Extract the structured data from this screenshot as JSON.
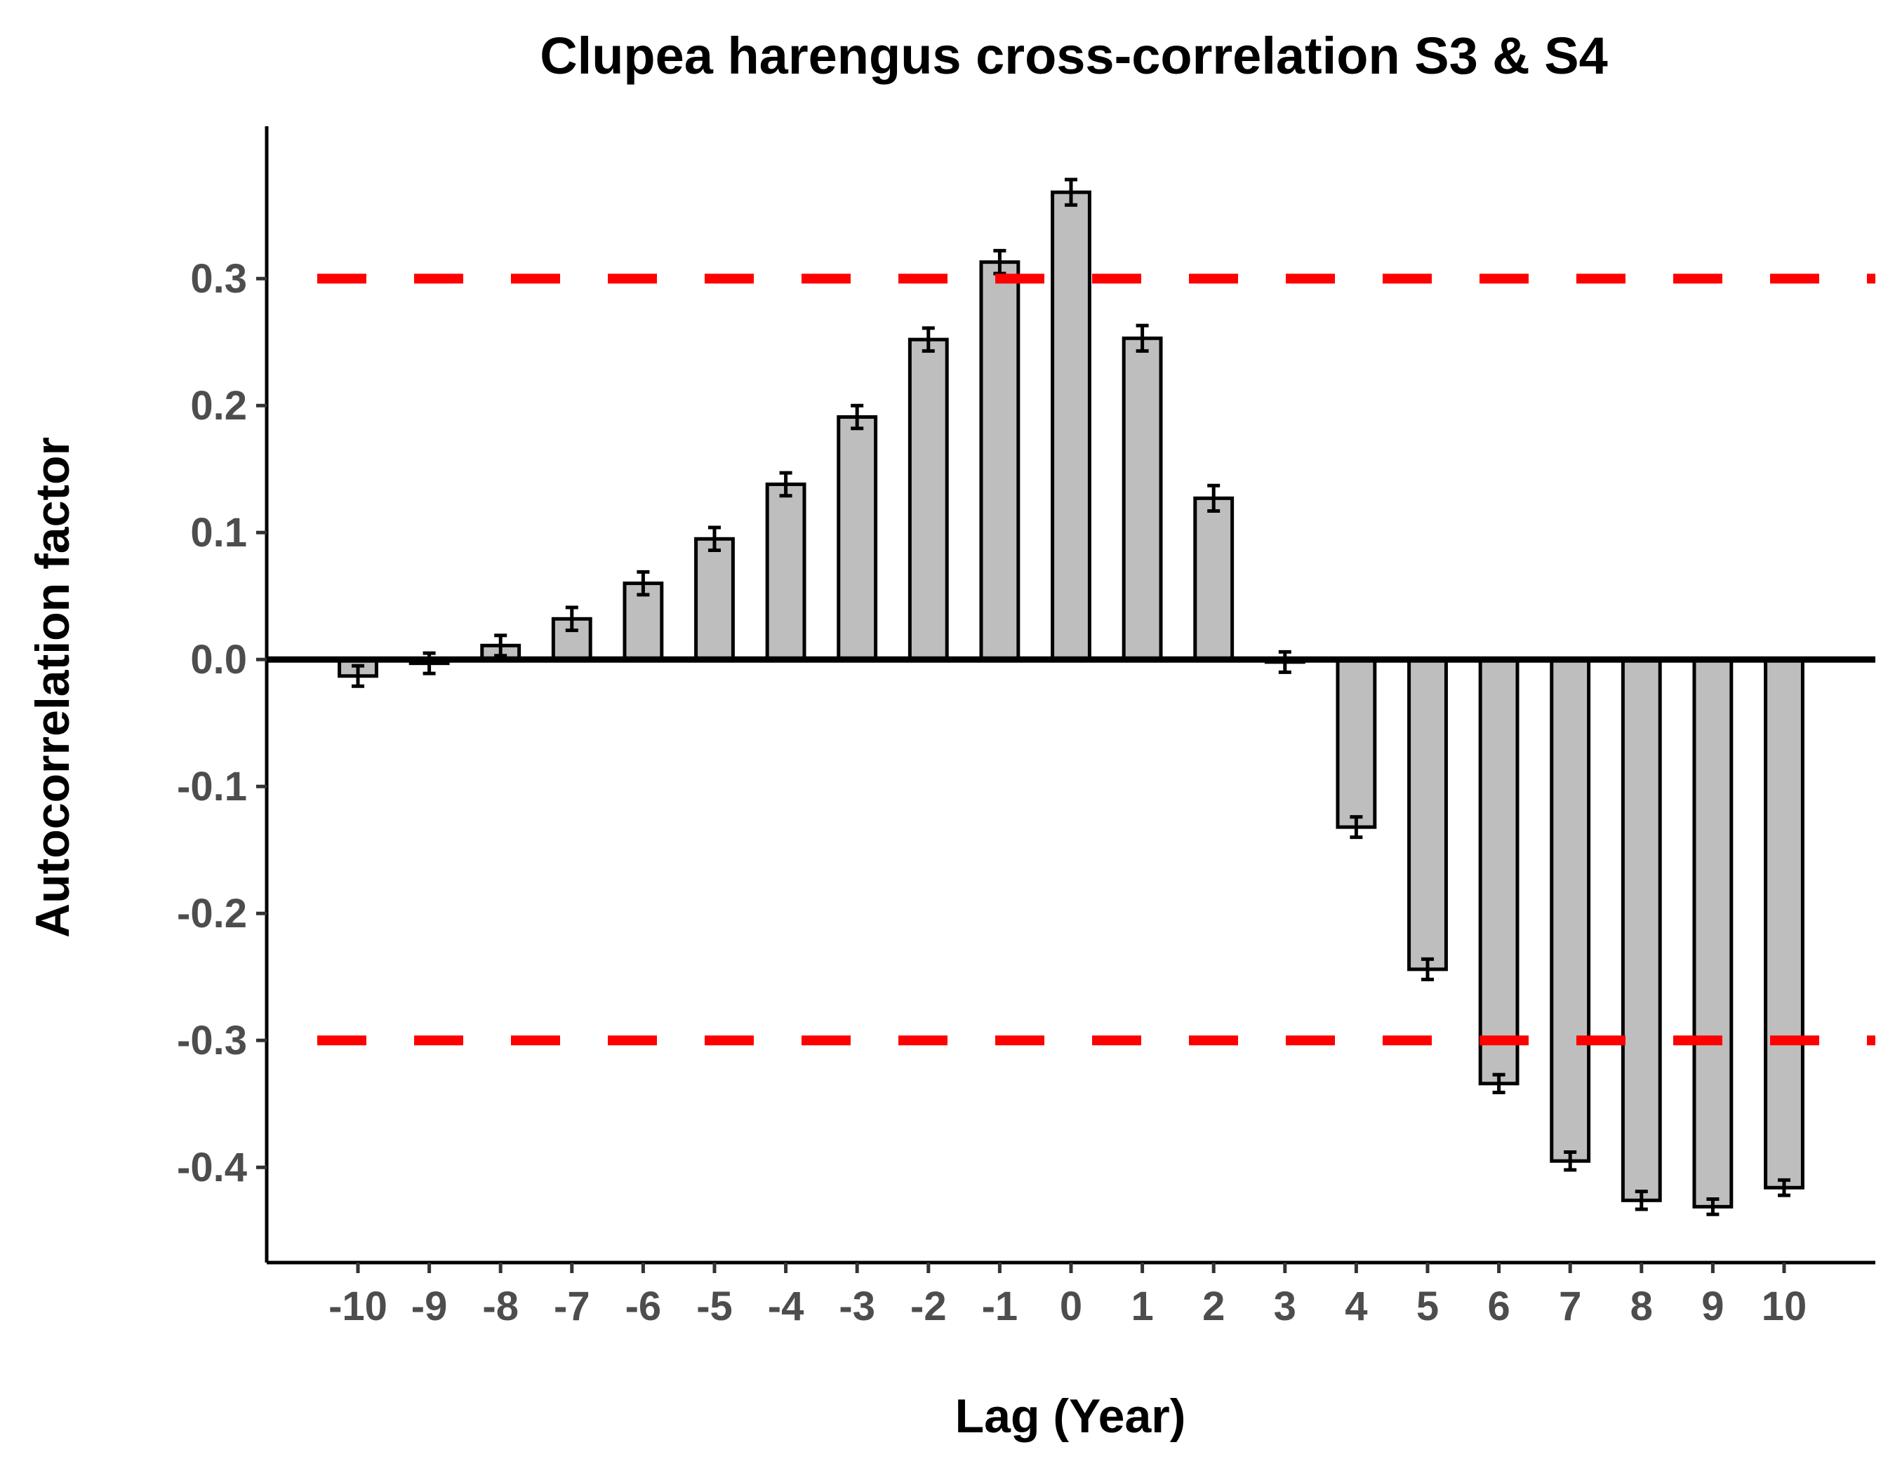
{
  "chart_data": {
    "type": "bar",
    "title": "Clupea harengus cross-correlation S3 & S4",
    "xlabel": "Lag (Year)",
    "ylabel": "Autocorrelation factor",
    "categories": [
      "-10",
      "-9",
      "-8",
      "-7",
      "-6",
      "-5",
      "-4",
      "-3",
      "-2",
      "-1",
      "0",
      "1",
      "2",
      "3",
      "4",
      "5",
      "6",
      "7",
      "8",
      "9",
      "10"
    ],
    "values": [
      -0.013,
      -0.003,
      0.011,
      0.032,
      0.06,
      0.095,
      0.138,
      0.191,
      0.252,
      0.313,
      0.368,
      0.253,
      0.127,
      -0.002,
      -0.132,
      -0.244,
      -0.334,
      -0.395,
      -0.426,
      -0.431,
      -0.416
    ],
    "error": [
      0.008,
      0.008,
      0.008,
      0.009,
      0.009,
      0.009,
      0.009,
      0.009,
      0.009,
      0.009,
      0.01,
      0.01,
      0.01,
      0.008,
      0.008,
      0.008,
      0.007,
      0.007,
      0.007,
      0.006,
      0.006
    ],
    "ylim": [
      -0.475,
      0.42
    ],
    "yticks": [
      -0.4,
      -0.3,
      -0.2,
      -0.1,
      0.0,
      0.1,
      0.2,
      0.3
    ],
    "ytick_labels": [
      "-0.4",
      "-0.3",
      "-0.2",
      "-0.1",
      "0.0",
      "0.1",
      "0.2",
      "0.3"
    ],
    "threshold_lines": [
      0.3,
      -0.3
    ],
    "bar_fill": "#bebebe",
    "bar_stroke": "#000000",
    "threshold_color": "#ff0000",
    "grid": false,
    "legend": "none"
  }
}
